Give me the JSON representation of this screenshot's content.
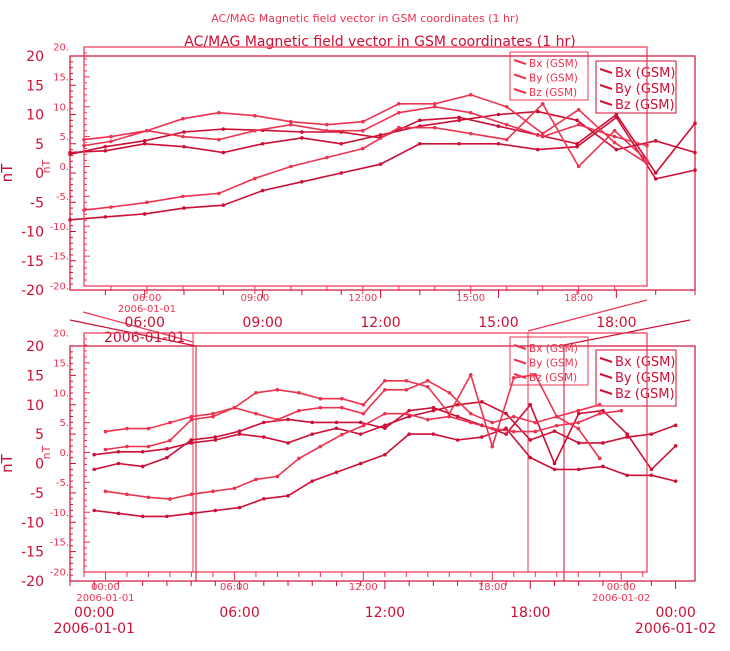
{
  "colors": {
    "primary": "#cc0f35",
    "secondary": "#ee3350"
  },
  "chart_data": {
    "type": "line",
    "title": "AC/MAG  Magnetic field vector in GSM coordinates (1 hr)",
    "ylabel": "nT",
    "ylim": [
      -20,
      20
    ],
    "legend_placement": "top-right",
    "legend": [
      "Bx (GSM)",
      "By (GSM)",
      "Bz (GSM)"
    ],
    "panels": [
      {
        "name": "top-panel",
        "layers": [
          {
            "name": "primary-layer",
            "xlim_hours": [
              4.1,
              20
            ],
            "yticks": [
              "20",
              "15",
              "10",
              "5",
              "0",
              "-5",
              "-10",
              "-15",
              "-20"
            ],
            "xticks": [
              {
                "hour": 6,
                "label": "06:00"
              },
              {
                "hour": 9,
                "label": "09:00"
              },
              {
                "hour": 12,
                "label": "12:00"
              },
              {
                "hour": 15,
                "label": "15:00"
              },
              {
                "hour": 18,
                "label": "18:00"
              }
            ],
            "date_labels": [
              {
                "hour": 6,
                "label": "2006-01-01"
              }
            ],
            "series": [
              {
                "name": "Bx (GSM)",
                "x": [
                  4.1,
                  5,
                  6,
                  7,
                  8,
                  9,
                  10,
                  11,
                  12,
                  13,
                  14,
                  15,
                  16,
                  17,
                  18,
                  19,
                  20
                ],
                "y": [
                  3.5,
                  3.8,
                  5,
                  4.5,
                  3.5,
                  5,
                  6,
                  5,
                  6.5,
                  8,
                  9,
                  10,
                  10.5,
                  9,
                  4,
                  5.5,
                  3.5
                ]
              },
              {
                "name": "By (GSM)",
                "x": [
                  4.1,
                  5,
                  6,
                  7,
                  8,
                  9,
                  10,
                  11,
                  12,
                  13,
                  14,
                  15,
                  16,
                  17,
                  18,
                  19,
                  20
                ],
                "y": [
                  3.2,
                  4.5,
                  5.5,
                  7,
                  7.5,
                  7.3,
                  7,
                  7,
                  6,
                  9,
                  9.5,
                  8,
                  6.5,
                  5,
                  10,
                  0,
                  8.5
                ]
              },
              {
                "name": "Bz (GSM)",
                "x": [
                  4.1,
                  5,
                  6,
                  7,
                  8,
                  9,
                  10,
                  11,
                  12,
                  13,
                  14,
                  15,
                  16,
                  17,
                  18,
                  19,
                  20
                ],
                "y": [
                  -8,
                  -7.5,
                  -7,
                  -6,
                  -5.5,
                  -3,
                  -1.5,
                  0,
                  1.5,
                  5,
                  5,
                  5,
                  4,
                  4.5,
                  9.5,
                  -1,
                  0.5
                ]
              }
            ]
          },
          {
            "name": "secondary-layer",
            "xlim_hours": [
              4.25,
              19.9
            ],
            "yticks": [
              "20.",
              "15.",
              "10.",
              "5.",
              "0.",
              "-5.",
              "-10.",
              "-15.",
              "-20."
            ],
            "xticks": [
              {
                "hour": 6,
                "label": "06:00"
              },
              {
                "hour": 9,
                "label": "09:00"
              },
              {
                "hour": 12,
                "label": "12:00"
              },
              {
                "hour": 15,
                "label": "15:00"
              },
              {
                "hour": 18,
                "label": "18:00"
              }
            ],
            "date_labels": [
              {
                "hour": 6,
                "label": "2006-01-01"
              }
            ],
            "series": [
              {
                "name": "Bx (GSM)",
                "x": [
                  4.25,
                  5,
                  6,
                  7,
                  8,
                  9,
                  10,
                  11,
                  12,
                  13,
                  14,
                  15,
                  16,
                  17,
                  18,
                  19,
                  19.9
                ],
                "y": [
                  4.5,
                  5,
                  6,
                  5,
                  4.5,
                  6,
                  7,
                  6,
                  6,
                  9,
                  10,
                  9,
                  7,
                  5,
                  7,
                  5,
                  3.5
                ]
              },
              {
                "name": "By (GSM)",
                "x": [
                  4.25,
                  5,
                  6,
                  7,
                  8,
                  9,
                  10,
                  11,
                  12,
                  13,
                  14,
                  15,
                  16,
                  17,
                  18,
                  19,
                  19.9
                ],
                "y": [
                  3.5,
                  4.2,
                  6,
                  8,
                  9,
                  8.5,
                  7.5,
                  7,
                  7.5,
                  10.5,
                  10.5,
                  12,
                  10,
                  5.5,
                  9.5,
                  4,
                  0.5
                ]
              },
              {
                "name": "Bz (GSM)",
                "x": [
                  4.25,
                  5,
                  6,
                  7,
                  8,
                  9,
                  10,
                  11,
                  12,
                  13,
                  14,
                  15,
                  16,
                  17,
                  18,
                  19,
                  19.9
                ],
                "y": [
                  -7.3,
                  -6.8,
                  -6,
                  -5,
                  -4.5,
                  -2,
                  0,
                  1.5,
                  3,
                  6.5,
                  6.5,
                  5.5,
                  4.5,
                  10.5,
                  0,
                  6,
                  1
                ]
              }
            ]
          }
        ]
      },
      {
        "name": "bottom-panel",
        "layers": [
          {
            "name": "primary-layer",
            "xlim_hours": [
              -1,
              24.8
            ],
            "yticks": [
              "20",
              "15",
              "10",
              "5",
              "0",
              "-5",
              "-10",
              "-15",
              "-20"
            ],
            "xticks": [
              {
                "hour": 0,
                "label": "00:00"
              },
              {
                "hour": 6,
                "label": "06:00"
              },
              {
                "hour": 12,
                "label": "12:00"
              },
              {
                "hour": 18,
                "label": "18:00"
              },
              {
                "hour": 24,
                "label": "00:00"
              }
            ],
            "date_labels": [
              {
                "hour": 0,
                "label": "2006-01-01"
              },
              {
                "hour": 24,
                "label": "2006-01-02"
              }
            ],
            "series": [
              {
                "name": "Bx (GSM)",
                "x": [
                  0,
                  1,
                  2,
                  3,
                  4,
                  5,
                  6,
                  7,
                  8,
                  9,
                  10,
                  11,
                  12,
                  13,
                  14,
                  15,
                  16,
                  17,
                  18,
                  19,
                  20,
                  21,
                  22,
                  23,
                  24
                ],
                "y": [
                  1.5,
                  2,
                  2,
                  2.5,
                  3.5,
                  4,
                  5,
                  4.5,
                  3.5,
                  5,
                  6,
                  5,
                  6.5,
                  8,
                  9,
                  10,
                  10.5,
                  8.5,
                  4,
                  5.5,
                  3.5,
                  3.5,
                  4.5,
                  5,
                  6.5
                ]
              },
              {
                "name": "By (GSM)",
                "x": [
                  0,
                  1,
                  2,
                  3,
                  4,
                  5,
                  6,
                  7,
                  8,
                  9,
                  10,
                  11,
                  12,
                  13,
                  14,
                  15,
                  16,
                  17,
                  18,
                  19,
                  20,
                  21,
                  22,
                  23,
                  24
                ],
                "y": [
                  -1,
                  0,
                  -0.5,
                  1,
                  4,
                  4.5,
                  5.5,
                  7,
                  7.5,
                  7,
                  7,
                  7,
                  6,
                  9,
                  9.5,
                  8,
                  6.5,
                  5,
                  10,
                  0,
                  8.5,
                  9,
                  5,
                  -1,
                  3
                ]
              },
              {
                "name": "Bz (GSM)",
                "x": [
                  0,
                  1,
                  2,
                  3,
                  4,
                  5,
                  6,
                  7,
                  8,
                  9,
                  10,
                  11,
                  12,
                  13,
                  14,
                  15,
                  16,
                  17,
                  18,
                  19,
                  20,
                  21,
                  22,
                  23,
                  24
                ],
                "y": [
                  -8,
                  -8.5,
                  -9,
                  -9,
                  -8.5,
                  -8,
                  -7.5,
                  -6,
                  -5.5,
                  -3,
                  -1.5,
                  0,
                  1.5,
                  5,
                  5,
                  4,
                  4.5,
                  6,
                  1,
                  -1,
                  -1,
                  -0.5,
                  -2,
                  -2,
                  -3
                ]
              }
            ]
          },
          {
            "name": "secondary-layer",
            "xlim_hours": [
              -1,
              25.2
            ],
            "yticks": [
              "20.",
              "15.",
              "10.",
              "5.",
              "0.",
              "-5.",
              "-10.",
              "-15.",
              "-20."
            ],
            "xticks": [
              {
                "hour": 0,
                "label": "00:00"
              },
              {
                "hour": 6,
                "label": "06:00"
              },
              {
                "hour": 12,
                "label": "12:00"
              },
              {
                "hour": 18,
                "label": "18:00"
              },
              {
                "hour": 24,
                "label": "00:00"
              }
            ],
            "date_labels": [
              {
                "hour": 0,
                "label": "2006-01-01"
              },
              {
                "hour": 24,
                "label": "2006-01-02"
              }
            ],
            "series": [
              {
                "name": "Bx (GSM)",
                "x": [
                  0,
                  1,
                  2,
                  3,
                  4,
                  5,
                  6,
                  7,
                  8,
                  9,
                  10,
                  11,
                  12,
                  13,
                  14,
                  15,
                  16,
                  17,
                  18,
                  19,
                  20,
                  21,
                  22,
                  23
                ],
                "y": [
                  3.5,
                  4,
                  4,
                  5,
                  6,
                  6.5,
                  7.5,
                  6.5,
                  5.5,
                  7,
                  7.5,
                  7.5,
                  6.5,
                  10.5,
                  10.5,
                  12,
                  10,
                  6.5,
                  5,
                  6,
                  5,
                  6,
                  7,
                  8
                ]
              },
              {
                "name": "By (GSM)",
                "x": [
                  0,
                  1,
                  2,
                  3,
                  4,
                  5,
                  6,
                  7,
                  8,
                  9,
                  10,
                  11,
                  12,
                  13,
                  14,
                  15,
                  16,
                  17,
                  18,
                  19,
                  20,
                  21,
                  22,
                  23
                ],
                "y": [
                  0.5,
                  1,
                  1,
                  2,
                  5.5,
                  6,
                  7.5,
                  10,
                  10.5,
                  10,
                  9,
                  9,
                  8,
                  12,
                  12,
                  11,
                  6.5,
                  13,
                  1,
                  12.5,
                  13,
                  6,
                  4,
                  -1
                ]
              },
              {
                "name": "Bz (GSM)",
                "x": [
                  0,
                  1,
                  2,
                  3,
                  4,
                  5,
                  6,
                  7,
                  8,
                  9,
                  10,
                  11,
                  12,
                  13,
                  14,
                  15,
                  16,
                  17,
                  18,
                  19,
                  20,
                  21,
                  22,
                  23,
                  24
                ],
                "y": [
                  -6.5,
                  -7,
                  -7.5,
                  -7.8,
                  -7,
                  -6.5,
                  -6,
                  -4.5,
                  -4,
                  -1,
                  1,
                  3,
                  4.5,
                  6.5,
                  6.5,
                  5.5,
                  6,
                  5,
                  4,
                  3.5,
                  3.5,
                  4.5,
                  5,
                  6.5,
                  7
                ]
              }
            ]
          }
        ]
      }
    ]
  }
}
